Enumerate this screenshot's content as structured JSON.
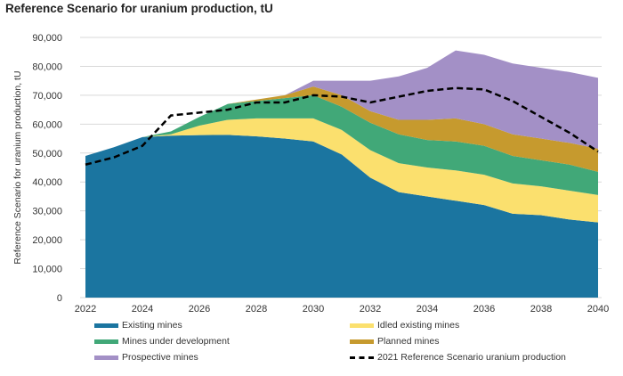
{
  "chart_data": {
    "type": "area",
    "stacked": true,
    "title": "Reference Scenario for uranium production, tU",
    "xlabel": "",
    "ylabel": "Reference Scenario for uranium production, tU",
    "x": [
      2022,
      2023,
      2024,
      2025,
      2026,
      2027,
      2028,
      2029,
      2030,
      2031,
      2032,
      2033,
      2034,
      2035,
      2036,
      2037,
      2038,
      2039,
      2040
    ],
    "xticks": [
      "2022",
      "2024",
      "2026",
      "2028",
      "2030",
      "2032",
      "2034",
      "2036",
      "2038",
      "2040"
    ],
    "ylim": [
      0,
      90000
    ],
    "yticks": [
      "0",
      "10,000",
      "20,000",
      "30,000",
      "40,000",
      "50,000",
      "60,000",
      "70,000",
      "80,000",
      "90,000"
    ],
    "grid": true,
    "legend_position": "bottom",
    "series": [
      {
        "name": "Existing mines",
        "color": "#1b75a0",
        "values": [
          49000,
          52000,
          55500,
          56000,
          56200,
          56300,
          55800,
          55000,
          54000,
          49500,
          41500,
          36500,
          35000,
          33500,
          32000,
          29000,
          28500,
          27000,
          26000
        ]
      },
      {
        "name": "Idled existing mines",
        "color": "#fbe06e",
        "values": [
          0,
          0,
          0,
          500,
          3300,
          5200,
          6200,
          7000,
          8000,
          8500,
          9500,
          10000,
          10000,
          10500,
          10500,
          10500,
          10000,
          10000,
          9500
        ]
      },
      {
        "name": "Mines under development",
        "color": "#41a878",
        "values": [
          0,
          0,
          0,
          1000,
          3000,
          5500,
          6000,
          7000,
          8000,
          8000,
          9500,
          10000,
          9500,
          10000,
          10000,
          9500,
          9000,
          9000,
          8000
        ]
      },
      {
        "name": "Planned mines",
        "color": "#c69a2e",
        "values": [
          0,
          0,
          0,
          0,
          0,
          0,
          500,
          1000,
          3000,
          4000,
          4000,
          5000,
          7000,
          8000,
          7500,
          7500,
          7500,
          7500,
          8000
        ]
      },
      {
        "name": "Prospective mines",
        "color": "#a390c6",
        "values": [
          0,
          0,
          0,
          0,
          0,
          0,
          0,
          0,
          2000,
          5000,
          10500,
          15000,
          18000,
          23500,
          24000,
          24500,
          24500,
          24500,
          24500
        ]
      }
    ],
    "line": {
      "name": "2021 Reference Scenario uranium production",
      "color": "#000000",
      "style": "dashed",
      "values": [
        46000,
        48500,
        52500,
        63000,
        64000,
        65000,
        67500,
        67500,
        70000,
        69500,
        67500,
        69500,
        71500,
        72500,
        72000,
        68000,
        62500,
        57000,
        50500
      ]
    }
  }
}
